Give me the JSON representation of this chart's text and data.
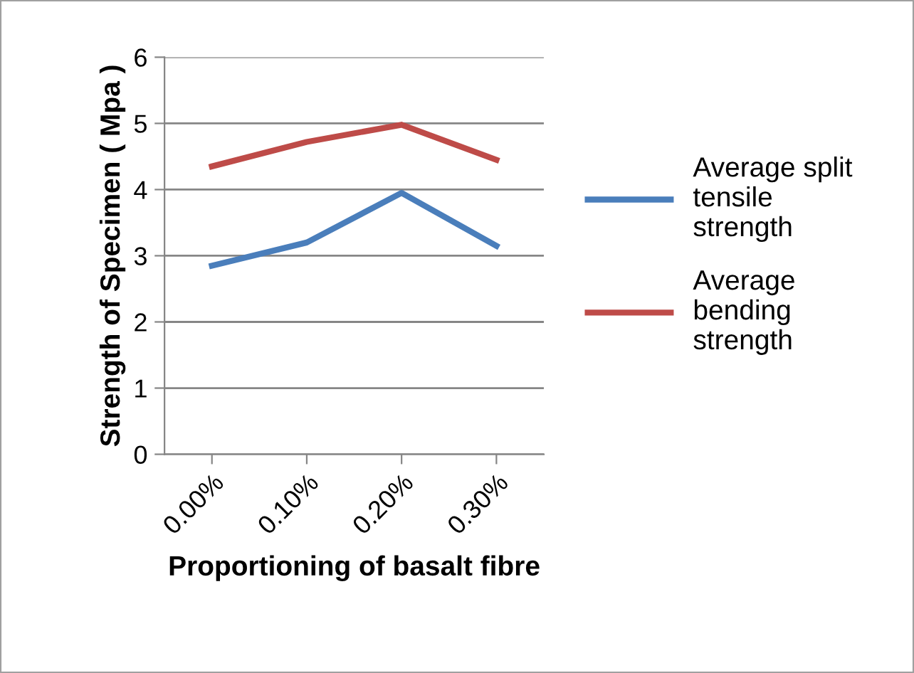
{
  "chart_data": {
    "type": "line",
    "xlabel": "Proportioning of basalt fibre",
    "ylabel": "Strength of Specimen ( Mpa )",
    "categories": [
      "0.00%",
      "0.10%",
      "0.20%",
      "0.30%"
    ],
    "series": [
      {
        "name": "Average split\ntensile\nstrength",
        "color": "#4a7ebb",
        "values": [
          2.85,
          3.2,
          3.95,
          3.15
        ]
      },
      {
        "name": "Average\nbending\nstrength",
        "color": "#be4b48",
        "values": [
          4.35,
          4.72,
          4.98,
          4.45
        ]
      }
    ],
    "ylim": [
      0,
      6
    ],
    "yticks": [
      0,
      1,
      2,
      3,
      4,
      5,
      6
    ],
    "grid": "y",
    "legend": "right",
    "marker": "none",
    "line_style": "solid"
  }
}
